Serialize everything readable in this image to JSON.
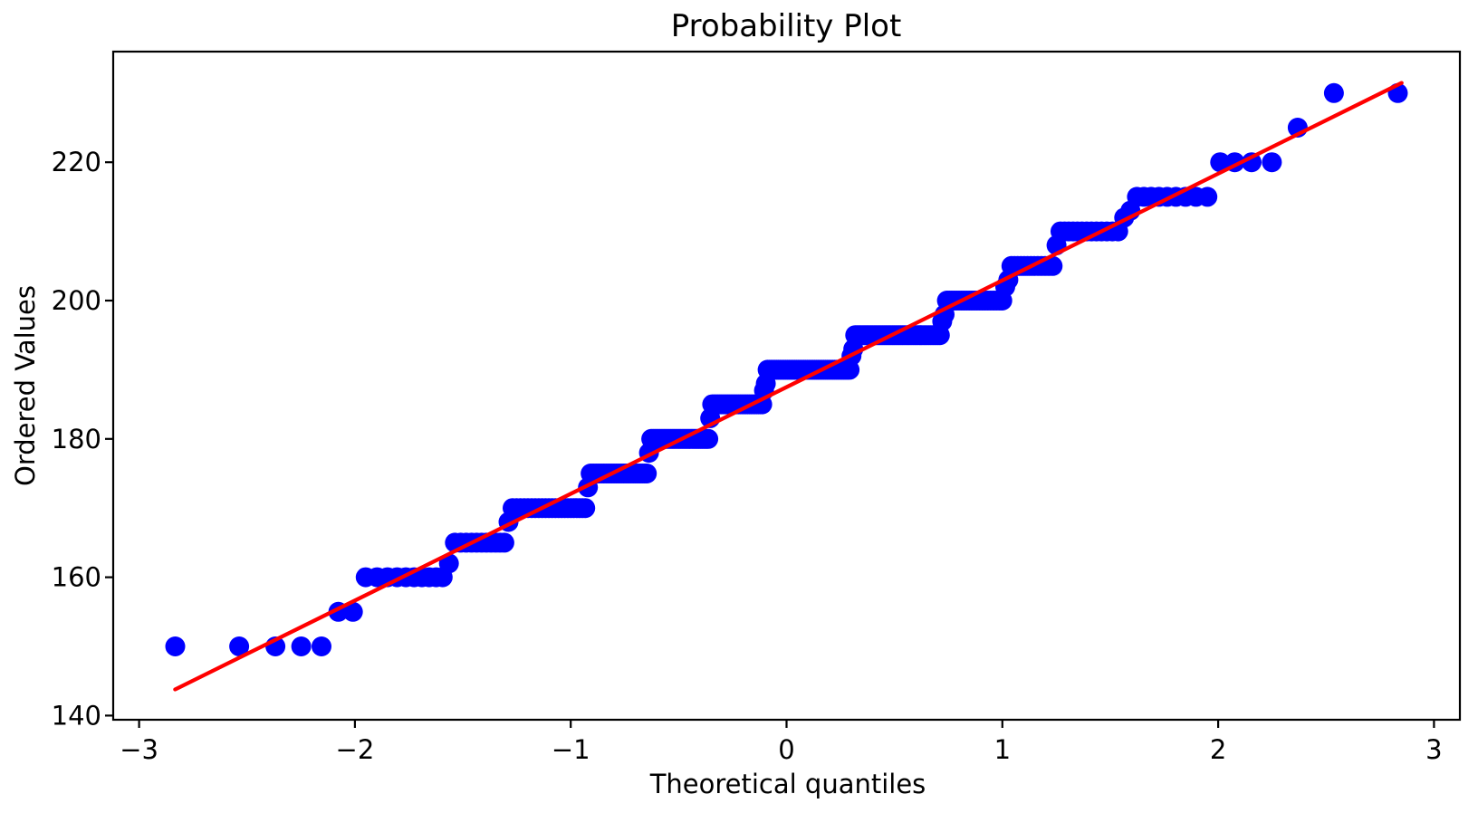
{
  "chart_data": {
    "type": "scatter",
    "subtype": "normal-probability-plot",
    "title": "Probability Plot",
    "xlabel": "Theoretical quantiles",
    "ylabel": "Ordered Values",
    "xlim": [
      -3.12,
      3.12
    ],
    "ylim": [
      139.4,
      236.0
    ],
    "x_ticks": [
      -3,
      -2,
      -1,
      0,
      1,
      2,
      3
    ],
    "x_tick_labels": [
      "−3",
      "−2",
      "−1",
      "0",
      "1",
      "2",
      "3"
    ],
    "y_ticks": [
      140,
      160,
      180,
      200,
      220
    ],
    "y_tick_labels": [
      "140",
      "160",
      "180",
      "200",
      "220"
    ],
    "grid": false,
    "legend": "none",
    "n_points": 300,
    "plotting_positions": "filliben",
    "ordered_value_counts": [
      [
        150,
        5
      ],
      [
        155,
        2
      ],
      [
        160,
        10
      ],
      [
        162,
        1
      ],
      [
        165,
        11
      ],
      [
        168,
        1
      ],
      [
        170,
        23
      ],
      [
        173,
        1
      ],
      [
        175,
        24
      ],
      [
        178,
        1
      ],
      [
        180,
        29
      ],
      [
        183,
        1
      ],
      [
        185,
        28
      ],
      [
        187,
        1
      ],
      [
        188,
        1
      ],
      [
        190,
        46
      ],
      [
        192,
        1
      ],
      [
        193,
        1
      ],
      [
        195,
        42
      ],
      [
        197,
        1
      ],
      [
        198,
        1
      ],
      [
        200,
        22
      ],
      [
        202,
        1
      ],
      [
        203,
        1
      ],
      [
        205,
        13
      ],
      [
        208,
        1
      ],
      [
        210,
        13
      ],
      [
        212,
        1
      ],
      [
        213,
        1
      ],
      [
        215,
        9
      ],
      [
        220,
        4
      ],
      [
        225,
        1
      ],
      [
        230,
        2
      ]
    ],
    "fit_line": {
      "slope": 15.43,
      "intercept": 187.5,
      "q_start": -2.833,
      "q_end": 2.85
    },
    "colors": {
      "marker": "#0000ff",
      "fit_line": "#ff0000",
      "axis": "#000000",
      "background": "#ffffff"
    },
    "marker_radius_px": 11
  }
}
